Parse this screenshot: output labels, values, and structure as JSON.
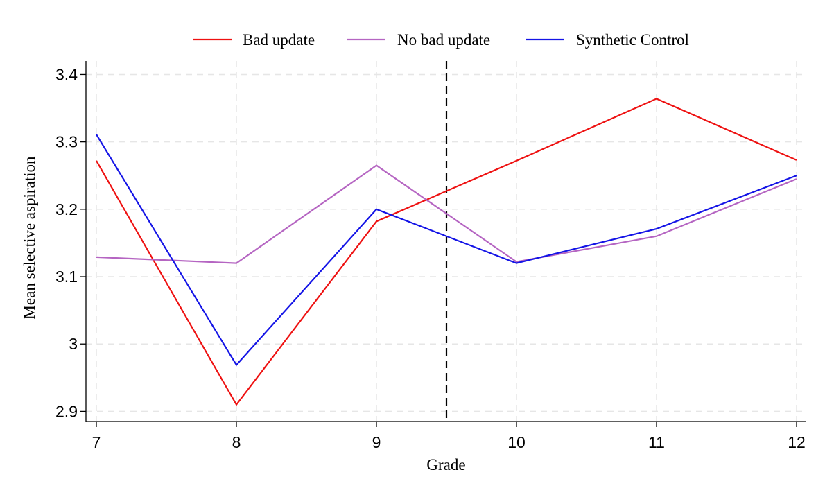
{
  "chart_data": {
    "type": "line",
    "title": "",
    "xlabel": "Grade",
    "ylabel": "Mean selective aspiration",
    "x": [
      7,
      8,
      9,
      10,
      11,
      12
    ],
    "x_ticks": [
      7,
      8,
      9,
      10,
      11,
      12
    ],
    "x_tick_labels": [
      "7",
      "8",
      "9",
      "10",
      "11",
      "12"
    ],
    "xlim": [
      7,
      12
    ],
    "y_ticks": [
      2.9,
      3.0,
      3.1,
      3.2,
      3.3,
      3.4
    ],
    "y_tick_labels": [
      "2.9",
      "3",
      "3.1",
      "3.2",
      "3.3",
      "3.4"
    ],
    "ylim": [
      2.885,
      3.42
    ],
    "grid": true,
    "legend_position": "top",
    "vertical_reference_line": {
      "x": 9.5,
      "style": "dashed",
      "color": "#000000"
    },
    "series": [
      {
        "name": "Bad update",
        "color": "#ee1111",
        "values": [
          3.272,
          2.91,
          3.182,
          3.272,
          3.364,
          3.273
        ]
      },
      {
        "name": "No bad update",
        "color": "#b565c2",
        "values": [
          3.129,
          3.12,
          3.265,
          3.122,
          3.16,
          3.245
        ]
      },
      {
        "name": "Synthetic Control",
        "color": "#1414e6",
        "values": [
          3.311,
          2.969,
          3.2,
          3.12,
          3.171,
          3.25
        ]
      }
    ]
  }
}
